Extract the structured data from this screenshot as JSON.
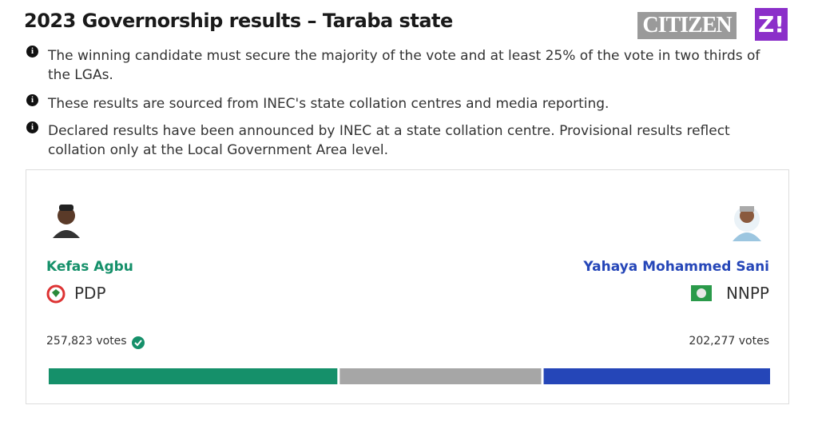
{
  "title": "2023 Governorship results – Taraba state",
  "logos": [
    "CITIZEN",
    "Z!"
  ],
  "notes": [
    "The winning candidate must secure the majority of the vote and at least 25% of the vote in two thirds of the LGAs.",
    "These results are sourced from INEC's state collation centres and media reporting.",
    "Declared results have been announced by INEC at a state collation centre. Provisional results reflect collation only at the Local Government Area level."
  ],
  "candidates": [
    {
      "name": "Kefas Agbu",
      "party": "PDP",
      "votes": 257823,
      "votes_label": "257,823 votes",
      "color": "#15906a"
    },
    {
      "name": "Yahaya Mohammed Sani",
      "party": "NNPP",
      "votes": 202277,
      "votes_label": "202,277 votes",
      "color": "#2546b8"
    }
  ],
  "other_votes": 180000,
  "other_color": "#a6a6a6"
}
